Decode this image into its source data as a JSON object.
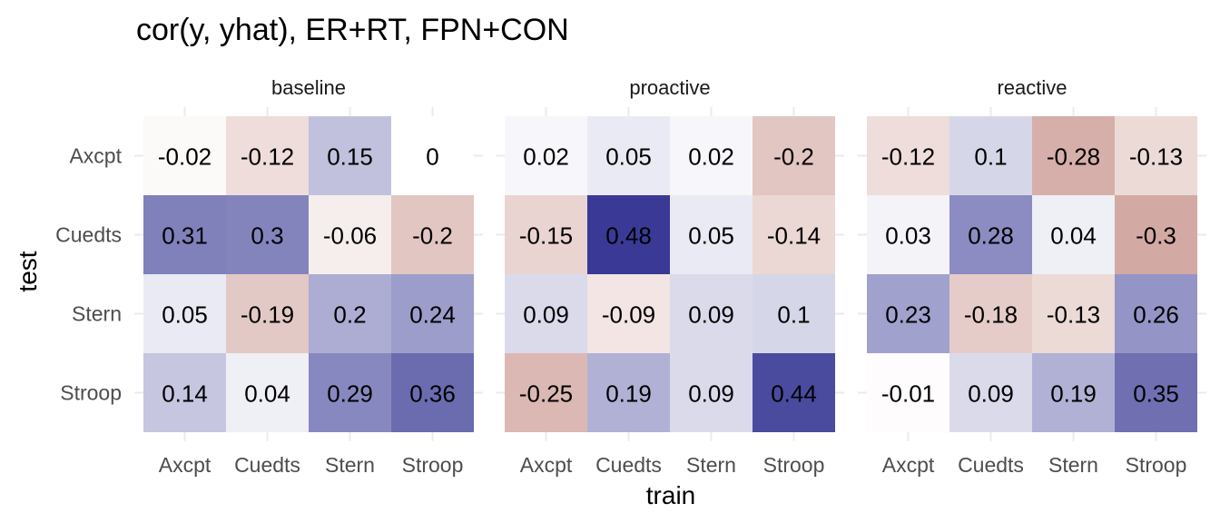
{
  "chart_data": {
    "type": "heatmap",
    "title": "cor(y, yhat), ER+RT, FPN+CON",
    "xlabel": "train",
    "ylabel": "test",
    "facets": [
      "baseline",
      "proactive",
      "reactive"
    ],
    "x_categories": [
      "Axcpt",
      "Cuedts",
      "Stern",
      "Stroop"
    ],
    "y_categories": [
      "Axcpt",
      "Cuedts",
      "Stern",
      "Stroop"
    ],
    "color_scale": {
      "low": "#b9766d",
      "mid": "#ffffff",
      "high": "#3a3a96",
      "limits": [
        -0.48,
        0.48
      ]
    },
    "panels": [
      {
        "facet": "baseline",
        "values": [
          [
            -0.02,
            -0.12,
            0.15,
            0
          ],
          [
            0.31,
            0.3,
            -0.06,
            -0.2
          ],
          [
            0.05,
            -0.19,
            0.2,
            0.24
          ],
          [
            0.14,
            0.04,
            0.29,
            0.36
          ]
        ]
      },
      {
        "facet": "proactive",
        "values": [
          [
            0.02,
            0.05,
            0.02,
            -0.2
          ],
          [
            -0.15,
            0.48,
            0.05,
            -0.14
          ],
          [
            0.09,
            -0.09,
            0.09,
            0.1
          ],
          [
            -0.25,
            0.19,
            0.09,
            0.44
          ]
        ]
      },
      {
        "facet": "reactive",
        "values": [
          [
            -0.12,
            0.1,
            -0.28,
            -0.13
          ],
          [
            0.03,
            0.28,
            0.04,
            -0.3
          ],
          [
            0.23,
            -0.18,
            -0.13,
            0.26
          ],
          [
            -0.01,
            0.09,
            0.19,
            0.35
          ]
        ]
      }
    ]
  }
}
